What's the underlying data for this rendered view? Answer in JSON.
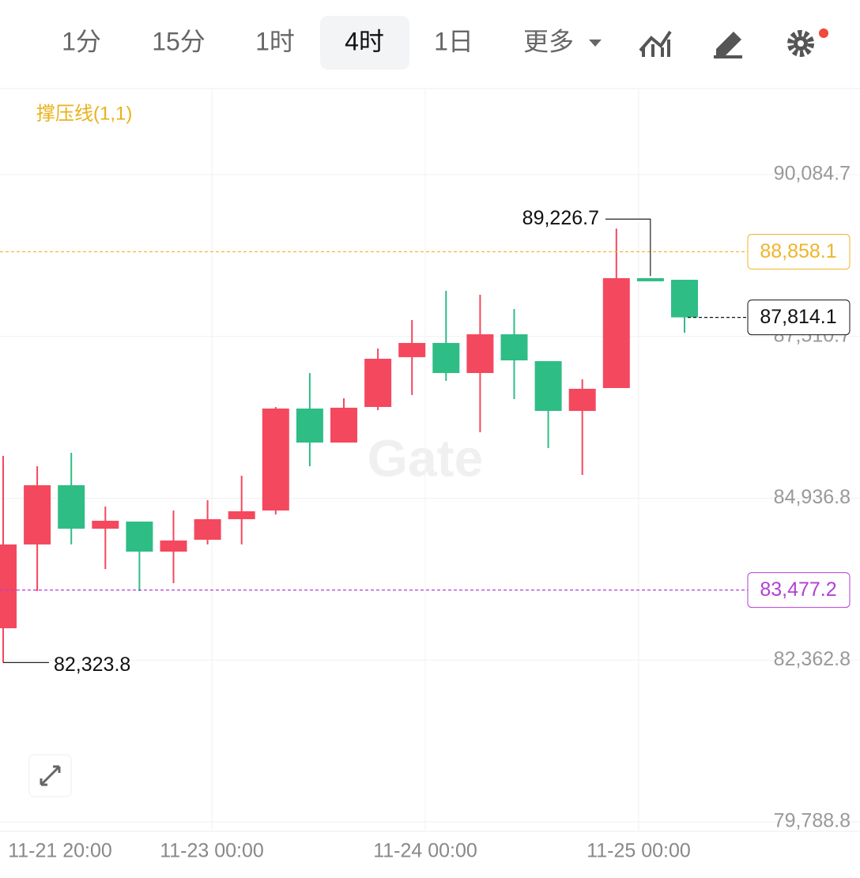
{
  "toolbar": {
    "tabs": [
      "1分",
      "15分",
      "1时",
      "4时",
      "1日",
      "更多"
    ],
    "active": "4时"
  },
  "chart_data": {
    "type": "candlestick",
    "indicator": "撑压线(1,1)",
    "watermark": "Gate",
    "up_color": "#f4485e",
    "down_color": "#2ebd85",
    "open": [
      82869,
      84202,
      85144,
      84453,
      84566,
      84088,
      84277,
      84604,
      84742,
      86364,
      85823,
      86389,
      87181,
      87407,
      86929,
      87545,
      87118,
      86326,
      86690,
      88438,
      88412
    ],
    "high": [
      85610,
      85446,
      85660,
      84805,
      84566,
      84742,
      84906,
      85295,
      86389,
      86929,
      86527,
      87319,
      87771,
      88237,
      88174,
      87947,
      87118,
      86829,
      89226.7,
      88438,
      88412
    ],
    "low": [
      82323.8,
      83460,
      84202,
      83812,
      83460,
      83586,
      84202,
      84202,
      84679,
      85446,
      85823,
      86339,
      86578,
      86804,
      85987,
      86515,
      85735,
      85308,
      86690,
      88388,
      87570
    ],
    "close": [
      84202,
      85144,
      84453,
      84579,
      84088,
      84265,
      84604,
      84730,
      86364,
      85823,
      86377,
      87156,
      87407,
      86929,
      87545,
      87130,
      86326,
      86678,
      88438,
      88388,
      87814.1
    ],
    "ylim": [
      79638,
      91442
    ],
    "yticks": [
      {
        "value": 90084.7,
        "label": "90,084.7"
      },
      {
        "value": 87510.7,
        "label": "87,510.7"
      },
      {
        "value": 84936.8,
        "label": "84,936.8"
      },
      {
        "value": 82362.8,
        "label": "82,362.8"
      },
      {
        "value": 79788.8,
        "label": "79,788.8"
      }
    ],
    "xticks": [
      "11-21 20:00",
      "11-23 00:00",
      "11-24 00:00",
      "11-25 00:00"
    ],
    "high_mark": {
      "value": 89226.7,
      "label": "89,226.7"
    },
    "low_mark": {
      "value": 82323.8,
      "label": "82,323.8"
    },
    "price_lines": [
      {
        "value": 88858.1,
        "label": "88,858.1",
        "color": "#f0b429"
      },
      {
        "value": 87814.1,
        "label": "87,814.1",
        "color": "#111111"
      },
      {
        "value": 83477.2,
        "label": "83,477.2",
        "color": "#b23fd4"
      }
    ],
    "grid": true
  }
}
